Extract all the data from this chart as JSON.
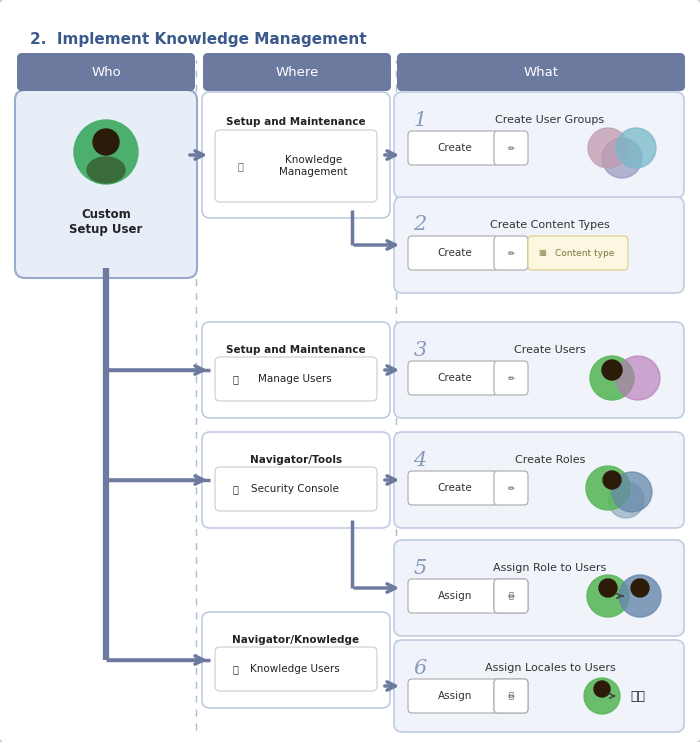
{
  "title": "2.  Implement Knowledge Management",
  "title_color": "#3a5a8c",
  "title_fontsize": 11,
  "bg_color": "#ffffff",
  "column_headers": [
    "Who",
    "Where",
    "What"
  ],
  "header_bg": "#6b7a9e",
  "header_text_color": "#ffffff",
  "header_fontsize": 9.5,
  "arrow_color": "#6b7a9e",
  "box_border_color": "#c0cce0",
  "box_bg": "#f0f4fa",
  "what_box_bg": "#f0f4fa",
  "where_box_bg": "#ffffff",
  "who_box_bg": "#e8eef8",
  "who_box_border": "#9aaace",
  "dashed_line_color": "#aabbcc",
  "spine_lw": 4.0,
  "arrow_lw": 2.5,
  "branch_lw": 2.5
}
